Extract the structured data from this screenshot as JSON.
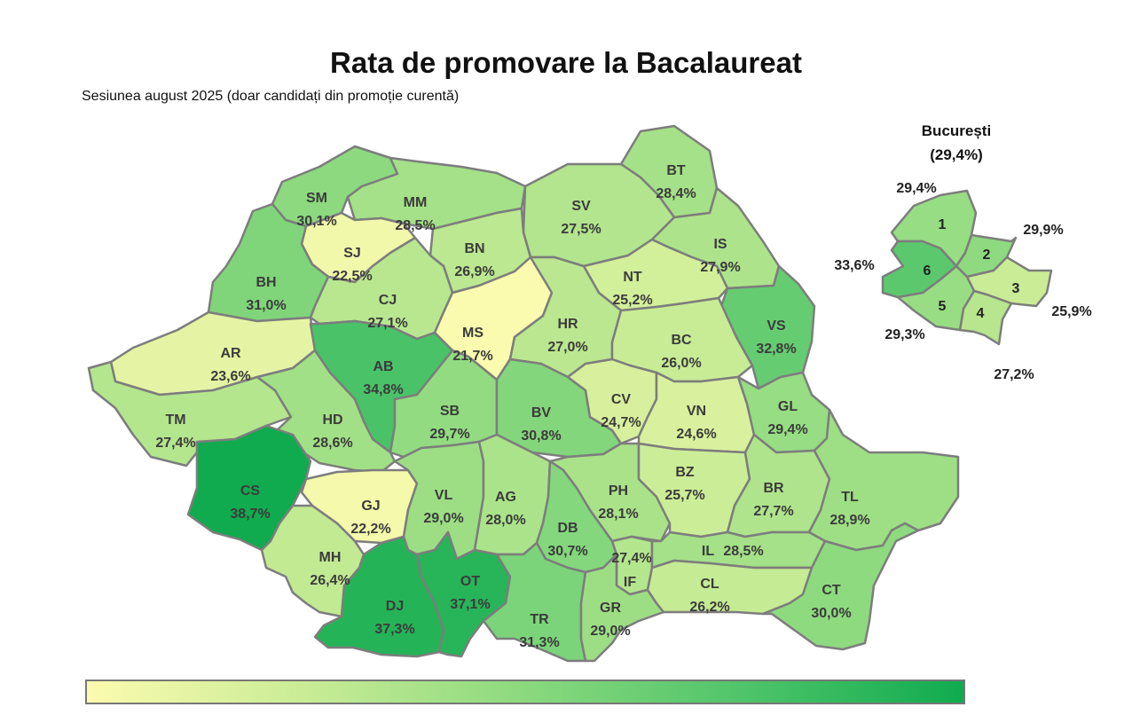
{
  "title": "Rata de promovare la Bacalaureat",
  "subtitle": "Sesiunea august 2025 (doar candidați din promoție curentă)",
  "colors": {
    "low": "#fbfbaf",
    "high": "#10ab4f",
    "border": "#7d7d7d"
  },
  "scale_range": [
    21.7,
    38.7
  ],
  "counties": [
    {
      "code": "SM",
      "value": "30,1%",
      "rate": 30.1
    },
    {
      "code": "MM",
      "value": "28,5%",
      "rate": 28.5
    },
    {
      "code": "BT",
      "value": "28,4%",
      "rate": 28.4
    },
    {
      "code": "SV",
      "value": "27,5%",
      "rate": 27.5
    },
    {
      "code": "SJ",
      "value": "22,5%",
      "rate": 22.5
    },
    {
      "code": "BN",
      "value": "26,9%",
      "rate": 26.9
    },
    {
      "code": "IS",
      "value": "27,9%",
      "rate": 27.9
    },
    {
      "code": "BH",
      "value": "31,0%",
      "rate": 31.0
    },
    {
      "code": "CJ",
      "value": "27,1%",
      "rate": 27.1
    },
    {
      "code": "NT",
      "value": "25,2%",
      "rate": 25.2
    },
    {
      "code": "MS",
      "value": "21,7%",
      "rate": 21.7
    },
    {
      "code": "HR",
      "value": "27,0%",
      "rate": 27.0
    },
    {
      "code": "VS",
      "value": "32,8%",
      "rate": 32.8
    },
    {
      "code": "AR",
      "value": "23,6%",
      "rate": 23.6
    },
    {
      "code": "AB",
      "value": "34,8%",
      "rate": 34.8
    },
    {
      "code": "BC",
      "value": "26,0%",
      "rate": 26.0
    },
    {
      "code": "TM",
      "value": "27,4%",
      "rate": 27.4
    },
    {
      "code": "HD",
      "value": "28,6%",
      "rate": 28.6
    },
    {
      "code": "SB",
      "value": "29,7%",
      "rate": 29.7
    },
    {
      "code": "BV",
      "value": "30,8%",
      "rate": 30.8
    },
    {
      "code": "CV",
      "value": "24,7%",
      "rate": 24.7
    },
    {
      "code": "VN",
      "value": "24,6%",
      "rate": 24.6
    },
    {
      "code": "GL",
      "value": "29,4%",
      "rate": 29.4
    },
    {
      "code": "CS",
      "value": "38,7%",
      "rate": 38.7
    },
    {
      "code": "GJ",
      "value": "22,2%",
      "rate": 22.2
    },
    {
      "code": "VL",
      "value": "29,0%",
      "rate": 29.0
    },
    {
      "code": "AG",
      "value": "28,0%",
      "rate": 28.0
    },
    {
      "code": "PH",
      "value": "28,1%",
      "rate": 28.1
    },
    {
      "code": "BZ",
      "value": "25,7%",
      "rate": 25.7
    },
    {
      "code": "BR",
      "value": "27,7%",
      "rate": 27.7
    },
    {
      "code": "TL",
      "value": "28,9%",
      "rate": 28.9
    },
    {
      "code": "DB",
      "value": "30,7%",
      "rate": 30.7
    },
    {
      "code": "MH",
      "value": "26,4%",
      "rate": 26.4
    },
    {
      "code": "IF",
      "value": "27,4%",
      "rate": 27.4
    },
    {
      "code": "IL",
      "value": "28,5%",
      "rate": 28.5
    },
    {
      "code": "DJ",
      "value": "37,3%",
      "rate": 37.3
    },
    {
      "code": "OT",
      "value": "37,1%",
      "rate": 37.1
    },
    {
      "code": "TR",
      "value": "31,3%",
      "rate": 31.3
    },
    {
      "code": "GR",
      "value": "29,0%",
      "rate": 29.0
    },
    {
      "code": "CL",
      "value": "26,2%",
      "rate": 26.2
    },
    {
      "code": "CT",
      "value": "30,0%",
      "rate": 30.0
    }
  ],
  "bucuresti": {
    "title": "București",
    "total": "(29,4%)",
    "sectors": [
      {
        "num": "1",
        "value": "29,4%",
        "rate": 29.4
      },
      {
        "num": "2",
        "value": "29,9%",
        "rate": 29.9
      },
      {
        "num": "3",
        "value": "25,9%",
        "rate": 25.9
      },
      {
        "num": "4",
        "value": "27,2%",
        "rate": 27.2
      },
      {
        "num": "5",
        "value": "29,3%",
        "rate": 29.3
      },
      {
        "num": "6",
        "value": "33,6%",
        "rate": 33.6
      }
    ]
  }
}
